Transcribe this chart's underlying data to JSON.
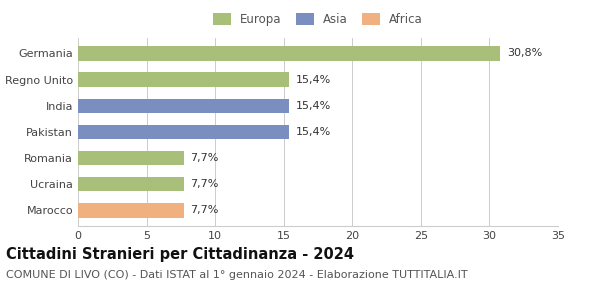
{
  "categories": [
    "Marocco",
    "Ucraina",
    "Romania",
    "Pakistan",
    "India",
    "Regno Unito",
    "Germania"
  ],
  "values": [
    7.7,
    7.7,
    7.7,
    15.4,
    15.4,
    15.4,
    30.8
  ],
  "labels": [
    "7,7%",
    "7,7%",
    "7,7%",
    "15,4%",
    "15,4%",
    "15,4%",
    "30,8%"
  ],
  "colors": [
    "#f0b080",
    "#a8bf7a",
    "#a8bf7a",
    "#7a8fc0",
    "#7a8fc0",
    "#a8bf7a",
    "#a8bf7a"
  ],
  "legend": [
    {
      "label": "Europa",
      "color": "#a8bf7a"
    },
    {
      "label": "Asia",
      "color": "#7a8fc0"
    },
    {
      "label": "Africa",
      "color": "#f0b080"
    }
  ],
  "xlim": [
    0,
    35
  ],
  "xticks": [
    0,
    5,
    10,
    15,
    20,
    25,
    30,
    35
  ],
  "title": "Cittadini Stranieri per Cittadinanza - 2024",
  "subtitle": "COMUNE DI LIVO (CO) - Dati ISTAT al 1° gennaio 2024 - Elaborazione TUTTITALIA.IT",
  "title_fontsize": 10.5,
  "subtitle_fontsize": 8,
  "label_fontsize": 8,
  "tick_fontsize": 8,
  "bar_height": 0.55,
  "background_color": "#ffffff",
  "grid_color": "#cccccc"
}
